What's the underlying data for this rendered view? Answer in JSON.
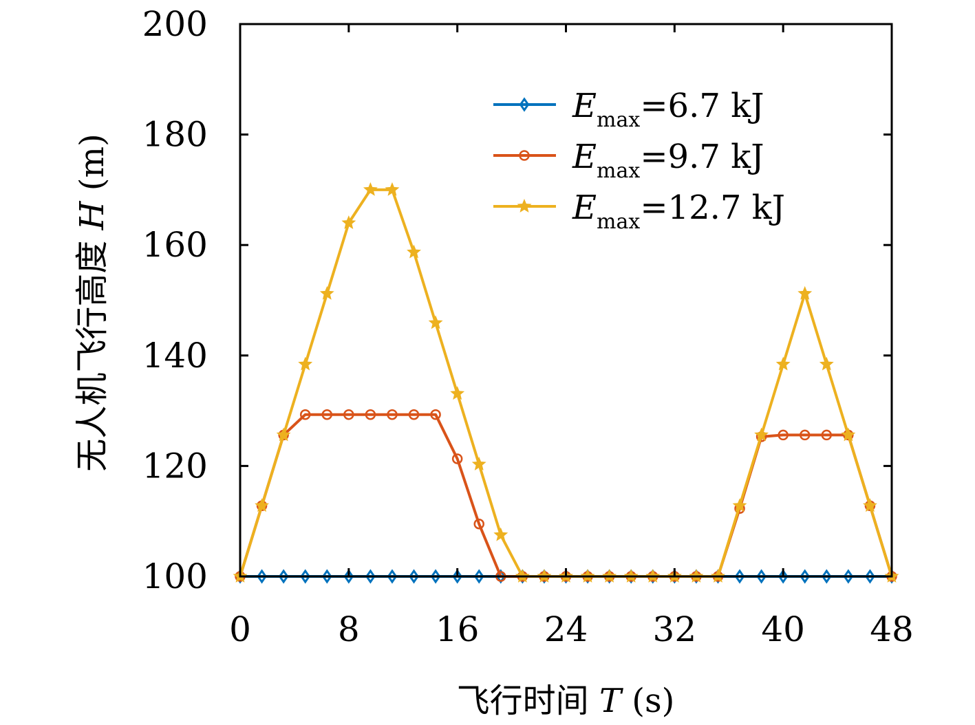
{
  "chart_data": {
    "type": "line",
    "xlabel_text": "飞行时间",
    "xlabel_var": "T",
    "xlabel_unit": "(s)",
    "ylabel_text": "无人机飞行高度",
    "ylabel_var": "H",
    "ylabel_unit": "(m)",
    "xlim": [
      0,
      48
    ],
    "ylim": [
      100,
      200
    ],
    "xticks": [
      "0",
      "8",
      "16",
      "24",
      "32",
      "40",
      "48"
    ],
    "yticks": [
      "100",
      "120",
      "140",
      "160",
      "180",
      "200"
    ],
    "grid": false,
    "legend_position": "top-right",
    "x": [
      0,
      1.6,
      3.2,
      4.8,
      6.4,
      8.0,
      9.6,
      11.2,
      12.8,
      14.4,
      16.0,
      17.6,
      19.2,
      20.8,
      22.4,
      24.0,
      25.6,
      27.2,
      28.8,
      30.4,
      32.0,
      33.6,
      35.2,
      36.8,
      38.4,
      40.0,
      41.6,
      43.2,
      44.8,
      46.4,
      48.0
    ],
    "series": [
      {
        "legend_var": "E",
        "legend_sub": "max",
        "legend_value": "=6.7 kJ",
        "color": "#0072BD",
        "marker": "diamond",
        "values": [
          100,
          100,
          100,
          100,
          100,
          100,
          100,
          100,
          100,
          100,
          100,
          100,
          100,
          100,
          100,
          100,
          100,
          100,
          100,
          100,
          100,
          100,
          100,
          100,
          100,
          100,
          100,
          100,
          100,
          100,
          100
        ]
      },
      {
        "legend_var": "E",
        "legend_sub": "max",
        "legend_value": "=9.7 kJ",
        "color": "#D95319",
        "marker": "circle",
        "values": [
          100,
          112.8,
          125.6,
          129.3,
          129.3,
          129.3,
          129.3,
          129.3,
          129.3,
          129.3,
          121.3,
          109.5,
          100,
          100,
          100,
          100,
          100,
          100,
          100,
          100,
          100,
          100,
          100,
          112.3,
          125.3,
          125.6,
          125.6,
          125.6,
          125.6,
          112.8,
          100
        ]
      },
      {
        "legend_var": "E",
        "legend_sub": "max",
        "legend_value": "=12.7 kJ",
        "color": "#EDB120",
        "marker": "star",
        "values": [
          100,
          112.8,
          125.6,
          138.4,
          151.2,
          164.0,
          170.0,
          170.0,
          158.7,
          145.9,
          133.1,
          120.3,
          107.5,
          100,
          100,
          100,
          100,
          100,
          100,
          100,
          100,
          100,
          100,
          112.8,
          125.6,
          138.4,
          151.2,
          138.4,
          125.6,
          112.8,
          100
        ]
      }
    ]
  }
}
